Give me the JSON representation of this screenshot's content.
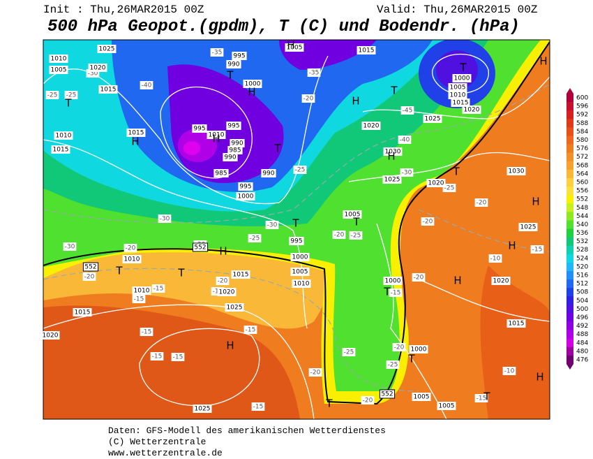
{
  "header": {
    "init": "Init : Thu,26MAR2015 00Z",
    "valid": "Valid: Thu,26MAR2015 00Z",
    "title": "500 hPa Geopot.(gpdm), T (C) und Bodendr. (hPa)"
  },
  "map": {
    "pressure_labels": [
      1010,
      1005,
      1025,
      1020,
      1015,
      995,
      990,
      1000,
      1005,
      1015,
      1000,
      1005,
      1010,
      1015,
      1020,
      1025,
      1020,
      1030,
      1025,
      1020,
      1030,
      1025,
      1010,
      1015,
      1015,
      995,
      1010,
      995,
      990,
      985,
      990,
      985,
      990,
      995,
      1000,
      1005,
      995,
      1000,
      1005,
      1010,
      1015,
      1010,
      1010,
      1020,
      1025,
      1015,
      1020,
      1000,
      1000,
      1005,
      1005,
      1025,
      1020,
      1015
    ],
    "temperature_labels": [
      "-30",
      "-25",
      "-25",
      "-40",
      "-35",
      "-35",
      "-20",
      "-45",
      "-40",
      "-30",
      "-25",
      "-30",
      "-30",
      "-25",
      "-20",
      "-25",
      "-30",
      "-20",
      "-20",
      "-20",
      "-15",
      "-15",
      "-15",
      "-20",
      "-15",
      "-15",
      "-15",
      "-15",
      "-20",
      "-25",
      "-20",
      "-25",
      "-20",
      "-15",
      "-20",
      "-20",
      "-25",
      "-15",
      "-10",
      "-10",
      "-15",
      "-20",
      "-15"
    ],
    "contour_labels": [
      552,
      552,
      552
    ],
    "pressure_centers": [
      "T",
      "H",
      "T",
      "H",
      "H",
      "T",
      "H",
      "H",
      "T",
      "T",
      "H",
      "H",
      "T",
      "T",
      "T",
      "H",
      "T",
      "T",
      "T",
      "H",
      "H",
      "H",
      "H",
      "T",
      "T",
      "T",
      "H"
    ]
  },
  "colorbar": {
    "levels": [
      600,
      596,
      592,
      588,
      584,
      580,
      576,
      572,
      568,
      564,
      560,
      556,
      552,
      548,
      544,
      540,
      536,
      532,
      528,
      524,
      520,
      516,
      512,
      508,
      504,
      500,
      496,
      492,
      488,
      484,
      480,
      476
    ],
    "colors": [
      "#b0003a",
      "#c8102e",
      "#d42020",
      "#e03818",
      "#e85018",
      "#ee6820",
      "#f07c20",
      "#f49028",
      "#f8a030",
      "#fab838",
      "#fcd040",
      "#fce040",
      "#f8f000",
      "#c8f020",
      "#90e820",
      "#50e030",
      "#20d040",
      "#10c878",
      "#10d0b0",
      "#10d8e0",
      "#20b8f8",
      "#2090f8",
      "#2068f0",
      "#2040e8",
      "#3020e0",
      "#5010e0",
      "#7000e0",
      "#9000e0",
      "#b000e8",
      "#d000e0",
      "#a000a0",
      "#700070"
    ]
  },
  "footer": {
    "lines": [
      "Daten: GFS-Modell des amerikanischen Wetterdienstes",
      "(C) Wetterzentrale",
      "www.wetterzentrale.de"
    ]
  }
}
